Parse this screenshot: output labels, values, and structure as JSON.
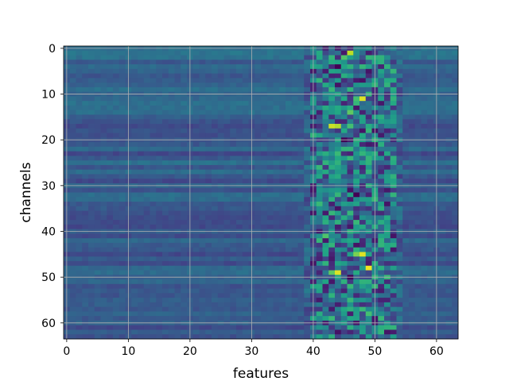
{
  "chart_data": {
    "type": "heatmap",
    "title": "",
    "xlabel": "features",
    "ylabel": "channels",
    "n_features": 64,
    "n_channels": 64,
    "xlim": [
      -0.5,
      63.5
    ],
    "ylim": [
      63.5,
      -0.5
    ],
    "x_ticks": [
      0,
      10,
      20,
      30,
      40,
      50,
      60
    ],
    "y_ticks": [
      0,
      10,
      20,
      30,
      40,
      50,
      60
    ],
    "y_axis_inverted": true,
    "grid": true,
    "colormap": "viridis",
    "value_range": [
      0,
      1
    ],
    "background_level": 0.3,
    "active_feature_band": [
      39,
      54
    ],
    "peak_cells": [
      {
        "feature": 46,
        "channel": 1,
        "value": 0.9
      },
      {
        "feature": 45,
        "channel": 2,
        "value": 0.72
      },
      {
        "feature": 43,
        "channel": 2,
        "value": 0.65
      },
      {
        "feature": 44,
        "channel": 4,
        "value": 0.0
      },
      {
        "feature": 42,
        "channel": 5,
        "value": 0.08
      },
      {
        "feature": 48,
        "channel": 7,
        "value": 0.05
      },
      {
        "feature": 48,
        "channel": 11,
        "value": 0.95
      },
      {
        "feature": 47,
        "channel": 11,
        "value": 0.7
      },
      {
        "feature": 46,
        "channel": 14,
        "value": 0.75
      },
      {
        "feature": 43,
        "channel": 17,
        "value": 0.92
      },
      {
        "feature": 44,
        "channel": 17,
        "value": 0.88
      },
      {
        "feature": 46,
        "channel": 17,
        "value": 0.7
      },
      {
        "feature": 45,
        "channel": 20,
        "value": 0.0
      },
      {
        "feature": 48,
        "channel": 23,
        "value": 0.65
      },
      {
        "feature": 44,
        "channel": 24,
        "value": 0.6
      },
      {
        "feature": 47,
        "channel": 27,
        "value": 0.6
      },
      {
        "feature": 46,
        "channel": 31,
        "value": 0.05
      },
      {
        "feature": 47,
        "channel": 32,
        "value": 0.0
      },
      {
        "feature": 48,
        "channel": 33,
        "value": 0.55
      },
      {
        "feature": 42,
        "channel": 41,
        "value": 0.72
      },
      {
        "feature": 46,
        "channel": 42,
        "value": 0.6
      },
      {
        "feature": 43,
        "channel": 43,
        "value": 0.65
      },
      {
        "feature": 48,
        "channel": 45,
        "value": 0.95
      },
      {
        "feature": 47,
        "channel": 45,
        "value": 0.8
      },
      {
        "feature": 49,
        "channel": 48,
        "value": 0.98
      },
      {
        "feature": 44,
        "channel": 49,
        "value": 0.95
      },
      {
        "feature": 43,
        "channel": 49,
        "value": 0.75
      },
      {
        "feature": 46,
        "channel": 50,
        "value": 0.0
      },
      {
        "feature": 49,
        "channel": 58,
        "value": 0.7
      },
      {
        "feature": 44,
        "channel": 62,
        "value": 0.05
      },
      {
        "feature": 51,
        "channel": 62,
        "value": 0.65
      }
    ]
  }
}
